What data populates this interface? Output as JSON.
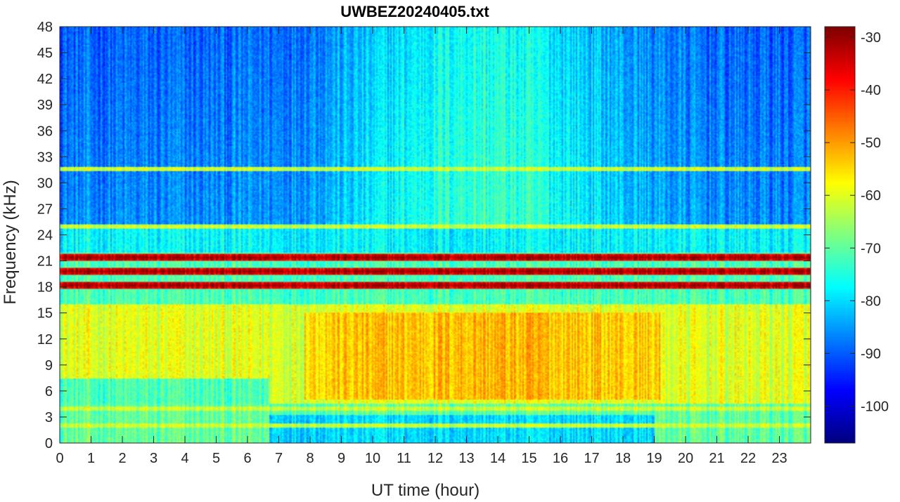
{
  "chart_data": {
    "type": "heatmap",
    "title": "UWBEZ20240405.txt",
    "xlabel": "UT time (hour)",
    "ylabel": "Frequency (kHz)",
    "xlim": [
      0,
      24
    ],
    "ylim": [
      0,
      48
    ],
    "x_ticks": [
      "0",
      "1",
      "2",
      "3",
      "4",
      "5",
      "6",
      "7",
      "8",
      "9",
      "10",
      "11",
      "12",
      "13",
      "14",
      "15",
      "16",
      "17",
      "18",
      "19",
      "20",
      "21",
      "22",
      "23"
    ],
    "y_ticks": [
      "0",
      "3",
      "6",
      "9",
      "12",
      "15",
      "18",
      "21",
      "24",
      "27",
      "30",
      "33",
      "36",
      "39",
      "42",
      "45",
      "48"
    ],
    "colorbar": {
      "colormap": "jet",
      "range": [
        -107,
        -28
      ],
      "ticks": [
        "-30",
        "-40",
        "-50",
        "-60",
        "-70",
        "-80",
        "-90",
        "-100"
      ]
    },
    "features": {
      "strong_lines_khz": [
        19.8,
        18.2,
        21.4
      ],
      "moderate_lines_khz": [
        24.9,
        31.6,
        4.0,
        2.0
      ],
      "daytime_enhancement": {
        "hours": [
          7.8,
          19.2
        ],
        "khz": [
          5,
          15
        ]
      }
    }
  }
}
